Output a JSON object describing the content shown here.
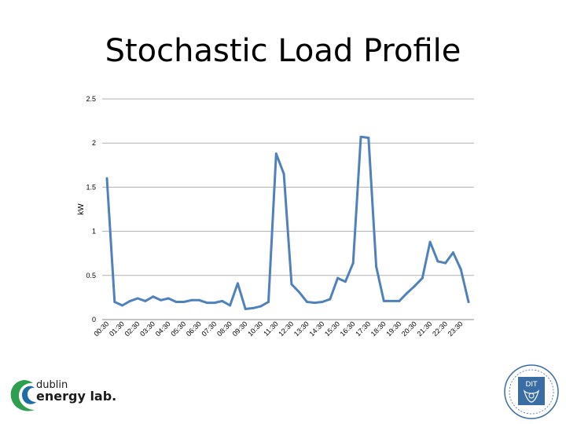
{
  "slide": {
    "title": "Stochastic Load Profile"
  },
  "logo": {
    "line1": "dublin",
    "line2": "energy lab.",
    "seal_text": "DIT"
  },
  "chart_data": {
    "type": "line",
    "title": "",
    "xlabel": "",
    "ylabel": "kW",
    "ylim": [
      0,
      2.5
    ],
    "yticks": [
      0,
      0.5,
      1,
      1.5,
      2,
      2.5
    ],
    "ytick_labels": [
      "0",
      "0.5",
      "1",
      "1.5",
      "2",
      "2.5"
    ],
    "grid": true,
    "legend": "none",
    "color": "#4f81bd",
    "x": [
      "00:30",
      "01:00",
      "01:30",
      "02:00",
      "02:30",
      "03:00",
      "03:30",
      "04:00",
      "04:30",
      "05:00",
      "05:30",
      "06:00",
      "06:30",
      "07:00",
      "07:30",
      "08:00",
      "08:30",
      "09:00",
      "09:30",
      "10:00",
      "10:30",
      "11:00",
      "11:30",
      "12:00",
      "12:30",
      "13:00",
      "13:30",
      "14:00",
      "14:30",
      "15:00",
      "15:30",
      "16:00",
      "16:30",
      "17:00",
      "17:30",
      "18:00",
      "18:30",
      "19:00",
      "19:30",
      "20:00",
      "20:30",
      "21:00",
      "21:30",
      "22:00",
      "22:30",
      "23:00",
      "23:30",
      "24:00"
    ],
    "xtick_labels": [
      "00:30",
      "01:30",
      "02:30",
      "03:30",
      "04:30",
      "05:30",
      "06:30",
      "07:30",
      "08:30",
      "09:30",
      "10:30",
      "11:30",
      "12:30",
      "13:30",
      "14:30",
      "15:30",
      "16:30",
      "17:30",
      "18:30",
      "19:30",
      "20:30",
      "21:30",
      "22:30",
      "23:30"
    ],
    "values": [
      1.6,
      0.2,
      0.16,
      0.21,
      0.24,
      0.21,
      0.26,
      0.22,
      0.24,
      0.2,
      0.2,
      0.22,
      0.22,
      0.19,
      0.19,
      0.21,
      0.16,
      0.41,
      0.12,
      0.13,
      0.15,
      0.2,
      1.88,
      1.65,
      0.4,
      0.31,
      0.2,
      0.19,
      0.2,
      0.23,
      0.47,
      0.43,
      0.64,
      2.07,
      2.06,
      0.6,
      0.21,
      0.21,
      0.21,
      0.3,
      0.38,
      0.47,
      0.88,
      0.66,
      0.64,
      0.76,
      0.57,
      0.2
    ]
  }
}
